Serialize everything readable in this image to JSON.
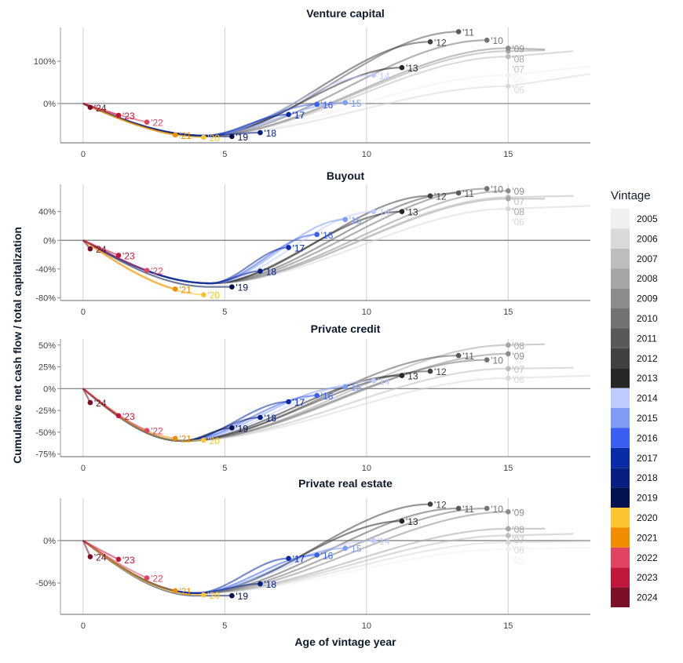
{
  "y_axis_label": "Cumulative net cash flow / total capitalization",
  "x_axis_label": "Age of vintage year",
  "legend": {
    "title": "Vintage",
    "placement": "right",
    "items": [
      {
        "label": "2005",
        "color": "#f0f0f0"
      },
      {
        "label": "2006",
        "color": "#d9d9d9"
      },
      {
        "label": "2007",
        "color": "#bdbdbd"
      },
      {
        "label": "2008",
        "color": "#a6a6a6"
      },
      {
        "label": "2009",
        "color": "#8c8c8c"
      },
      {
        "label": "2010",
        "color": "#737373"
      },
      {
        "label": "2011",
        "color": "#595959"
      },
      {
        "label": "2012",
        "color": "#404040"
      },
      {
        "label": "2013",
        "color": "#262626"
      },
      {
        "label": "2014",
        "color": "#bfcbff"
      },
      {
        "label": "2015",
        "color": "#7f9cf5"
      },
      {
        "label": "2016",
        "color": "#3a5ef0"
      },
      {
        "label": "2017",
        "color": "#0a2ba8"
      },
      {
        "label": "2018",
        "color": "#061f80"
      },
      {
        "label": "2019",
        "color": "#04124f"
      },
      {
        "label": "2020",
        "color": "#fdc431"
      },
      {
        "label": "2021",
        "color": "#f08c00"
      },
      {
        "label": "2022",
        "color": "#e04462"
      },
      {
        "label": "2023",
        "color": "#c0183a"
      },
      {
        "label": "2024",
        "color": "#7a0f26"
      }
    ]
  },
  "chart_data": [
    {
      "type": "line",
      "title": "Venture capital",
      "xlim": [
        -0.8,
        17.9
      ],
      "ylim": [
        -93,
        180
      ],
      "xticks": [
        "0",
        "5",
        "10",
        "15"
      ],
      "yticks": [
        {
          "v": 100,
          "label": "100%"
        },
        {
          "v": 0,
          "label": "0%"
        }
      ],
      "grid": "vertical",
      "trough_age": 4.3,
      "trough": -76,
      "series": [
        {
          "label": "'24",
          "vintage": "2024",
          "age": 0.25,
          "value": -9
        },
        {
          "label": "'23",
          "vintage": "2023",
          "age": 1.25,
          "value": -28
        },
        {
          "label": "'22",
          "vintage": "2022",
          "age": 2.25,
          "value": -44
        },
        {
          "label": "'21",
          "vintage": "2021",
          "age": 3.25,
          "value": -74
        },
        {
          "label": "'20",
          "vintage": "2020",
          "age": 4.25,
          "value": -80
        },
        {
          "label": "'19",
          "vintage": "2019",
          "age": 5.25,
          "value": -78
        },
        {
          "label": "'18",
          "vintage": "2018",
          "age": 6.25,
          "value": -69
        },
        {
          "label": "'17",
          "vintage": "2017",
          "age": 7.25,
          "value": -26
        },
        {
          "label": "'16",
          "vintage": "2016",
          "age": 8.25,
          "value": -2
        },
        {
          "label": "'15",
          "vintage": "2015",
          "age": 9.25,
          "value": 2
        },
        {
          "label": "'14",
          "vintage": "2014",
          "age": 10.25,
          "value": 67
        },
        {
          "label": "'13",
          "vintage": "2013",
          "age": 11.25,
          "value": 85
        },
        {
          "label": "'12",
          "vintage": "2012",
          "age": 12.25,
          "value": 146
        },
        {
          "label": "'11",
          "vintage": "2011",
          "age": 13.25,
          "value": 170
        },
        {
          "label": "'10",
          "vintage": "2010",
          "age": 14.25,
          "value": 150
        },
        {
          "label": "'09",
          "vintage": "2009",
          "age": 15,
          "value": 131,
          "tail": [
            16.3,
            128
          ]
        },
        {
          "label": "'08",
          "vintage": "2008",
          "age": 15,
          "value": 124,
          "tail": [
            16.3,
            126
          ]
        },
        {
          "label": "'07",
          "vintage": "2007",
          "age": 15,
          "value": 111,
          "tail": [
            17.3,
            124
          ]
        },
        {
          "label": "'06",
          "vintage": "2006",
          "age": 15,
          "value": 41,
          "tail": [
            17.9,
            70
          ]
        },
        {
          "label": "'05",
          "vintage": "2005",
          "age": 15,
          "value": 67,
          "tail": [
            17.9,
            88
          ]
        }
      ]
    },
    {
      "type": "line",
      "title": "Buyout",
      "xlim": [
        -0.8,
        17.9
      ],
      "ylim": [
        -84,
        78
      ],
      "xticks": [
        "0",
        "5",
        "10",
        "15"
      ],
      "yticks": [
        {
          "v": 40,
          "label": "40%"
        },
        {
          "v": 0,
          "label": "0%"
        },
        {
          "v": -40,
          "label": "-40%"
        },
        {
          "v": -80,
          "label": "-80%"
        }
      ],
      "grid": "vertical",
      "trough_age": 4.5,
      "trough": -60,
      "series": [
        {
          "label": "'24",
          "vintage": "2024",
          "age": 0.25,
          "value": -12
        },
        {
          "label": "'23",
          "vintage": "2023",
          "age": 1.25,
          "value": -21
        },
        {
          "label": "'22",
          "vintage": "2022",
          "age": 2.25,
          "value": -42
        },
        {
          "label": "'21",
          "vintage": "2021",
          "age": 3.25,
          "value": -68
        },
        {
          "label": "'20",
          "vintage": "2020",
          "age": 4.25,
          "value": -76
        },
        {
          "label": "'19",
          "vintage": "2019",
          "age": 5.25,
          "value": -65
        },
        {
          "label": "'18",
          "vintage": "2018",
          "age": 6.25,
          "value": -43
        },
        {
          "label": "'17",
          "vintage": "2017",
          "age": 7.25,
          "value": -10
        },
        {
          "label": "'16",
          "vintage": "2016",
          "age": 8.25,
          "value": 8
        },
        {
          "label": "'15",
          "vintage": "2015",
          "age": 9.25,
          "value": 29
        },
        {
          "label": "'14",
          "vintage": "2014",
          "age": 10.25,
          "value": 40
        },
        {
          "label": "'13",
          "vintage": "2013",
          "age": 11.25,
          "value": 40
        },
        {
          "label": "'12",
          "vintage": "2012",
          "age": 12.25,
          "value": 62
        },
        {
          "label": "'11",
          "vintage": "2011",
          "age": 13.25,
          "value": 66
        },
        {
          "label": "'10",
          "vintage": "2010",
          "age": 14.25,
          "value": 72
        },
        {
          "label": "'09",
          "vintage": "2009",
          "age": 15,
          "value": 69
        },
        {
          "label": "'08",
          "vintage": "2008",
          "age": 15,
          "value": 58,
          "tail": [
            16.3,
            58
          ]
        },
        {
          "label": "'07",
          "vintage": "2007",
          "age": 15,
          "value": 60,
          "tail": [
            17.3,
            62
          ]
        },
        {
          "label": "'06",
          "vintage": "2006",
          "age": 15,
          "value": 44,
          "tail": [
            17.9,
            48
          ]
        }
      ]
    },
    {
      "type": "line",
      "title": "Private credit",
      "xlim": [
        -0.8,
        17.9
      ],
      "ylim": [
        -78,
        57
      ],
      "xticks": [
        "0",
        "5",
        "10",
        "15"
      ],
      "yticks": [
        {
          "v": 50,
          "label": "50%"
        },
        {
          "v": 25,
          "label": "25%"
        },
        {
          "v": 0,
          "label": "0%"
        },
        {
          "v": -25,
          "label": "-25%"
        },
        {
          "v": -50,
          "label": "-50%"
        },
        {
          "v": -75,
          "label": "-75%"
        }
      ],
      "grid": "vertical",
      "trough_age": 3.5,
      "trough": -60,
      "series": [
        {
          "label": "'24",
          "vintage": "2024",
          "age": 0.25,
          "value": -16
        },
        {
          "label": "'23",
          "vintage": "2023",
          "age": 1.25,
          "value": -31
        },
        {
          "label": "'22",
          "vintage": "2022",
          "age": 2.25,
          "value": -48
        },
        {
          "label": "'21",
          "vintage": "2021",
          "age": 3.25,
          "value": -57
        },
        {
          "label": "'20",
          "vintage": "2020",
          "age": 4.25,
          "value": -59
        },
        {
          "label": "'19",
          "vintage": "2019",
          "age": 5.25,
          "value": -45
        },
        {
          "label": "'18",
          "vintage": "2018",
          "age": 6.25,
          "value": -33
        },
        {
          "label": "'17",
          "vintage": "2017",
          "age": 7.25,
          "value": -15
        },
        {
          "label": "'16",
          "vintage": "2016",
          "age": 8.25,
          "value": -8
        },
        {
          "label": "'15",
          "vintage": "2015",
          "age": 9.25,
          "value": 2
        },
        {
          "label": "'14",
          "vintage": "2014",
          "age": 10.25,
          "value": 9
        },
        {
          "label": "'13",
          "vintage": "2013",
          "age": 11.25,
          "value": 15
        },
        {
          "label": "'12",
          "vintage": "2012",
          "age": 12.25,
          "value": 20
        },
        {
          "label": "'11",
          "vintage": "2011",
          "age": 13.25,
          "value": 38
        },
        {
          "label": "'10",
          "vintage": "2010",
          "age": 14.25,
          "value": 33
        },
        {
          "label": "'09",
          "vintage": "2009",
          "age": 15,
          "value": 40
        },
        {
          "label": "'08",
          "vintage": "2008",
          "age": 15,
          "value": 50,
          "tail": [
            16.3,
            51
          ]
        },
        {
          "label": "'07",
          "vintage": "2007",
          "age": 15,
          "value": 23,
          "tail": [
            17.3,
            24
          ]
        },
        {
          "label": "'06",
          "vintage": "2006",
          "age": 15,
          "value": 12,
          "tail": [
            17.9,
            15
          ]
        }
      ]
    },
    {
      "type": "line",
      "title": "Private real estate",
      "xlim": [
        -0.8,
        17.9
      ],
      "ylim": [
        -87,
        50
      ],
      "xticks": [
        "0",
        "5",
        "10",
        "15"
      ],
      "yticks": [
        {
          "v": 0,
          "label": "0%"
        },
        {
          "v": -50,
          "label": "-50%"
        }
      ],
      "grid": "vertical",
      "trough_age": 4.0,
      "trough": -62,
      "series": [
        {
          "label": "'24",
          "vintage": "2024",
          "age": 0.25,
          "value": -19
        },
        {
          "label": "'23",
          "vintage": "2023",
          "age": 1.25,
          "value": -22
        },
        {
          "label": "'22",
          "vintage": "2022",
          "age": 2.25,
          "value": -44
        },
        {
          "label": "'21",
          "vintage": "2021",
          "age": 3.25,
          "value": -59
        },
        {
          "label": "'20",
          "vintage": "2020",
          "age": 4.25,
          "value": -64
        },
        {
          "label": "'19",
          "vintage": "2019",
          "age": 5.25,
          "value": -65
        },
        {
          "label": "'18",
          "vintage": "2018",
          "age": 6.25,
          "value": -51
        },
        {
          "label": "'17",
          "vintage": "2017",
          "age": 7.25,
          "value": -21
        },
        {
          "label": "'16",
          "vintage": "2016",
          "age": 8.25,
          "value": -17
        },
        {
          "label": "'15",
          "vintage": "2015",
          "age": 9.25,
          "value": -9
        },
        {
          "label": "'14",
          "vintage": "2014",
          "age": 10.25,
          "value": 0
        },
        {
          "label": "'13",
          "vintage": "2013",
          "age": 11.25,
          "value": 23
        },
        {
          "label": "'12",
          "vintage": "2012",
          "age": 12.25,
          "value": 43
        },
        {
          "label": "'11",
          "vintage": "2011",
          "age": 13.25,
          "value": 38
        },
        {
          "label": "'10",
          "vintage": "2010",
          "age": 14.25,
          "value": 38
        },
        {
          "label": "'09",
          "vintage": "2009",
          "age": 15,
          "value": 34
        },
        {
          "label": "'08",
          "vintage": "2008",
          "age": 15,
          "value": 14,
          "tail": [
            16.3,
            14
          ]
        },
        {
          "label": "'07",
          "vintage": "2007",
          "age": 15,
          "value": 6,
          "tail": [
            17.3,
            8
          ]
        },
        {
          "label": "'06",
          "vintage": "2006",
          "age": 15,
          "value": -2,
          "tail": [
            17.9,
            -1
          ]
        },
        {
          "label": "'05",
          "vintage": "2005",
          "age": 15,
          "value": -10,
          "tail": [
            17.9,
            -8
          ]
        }
      ]
    }
  ]
}
